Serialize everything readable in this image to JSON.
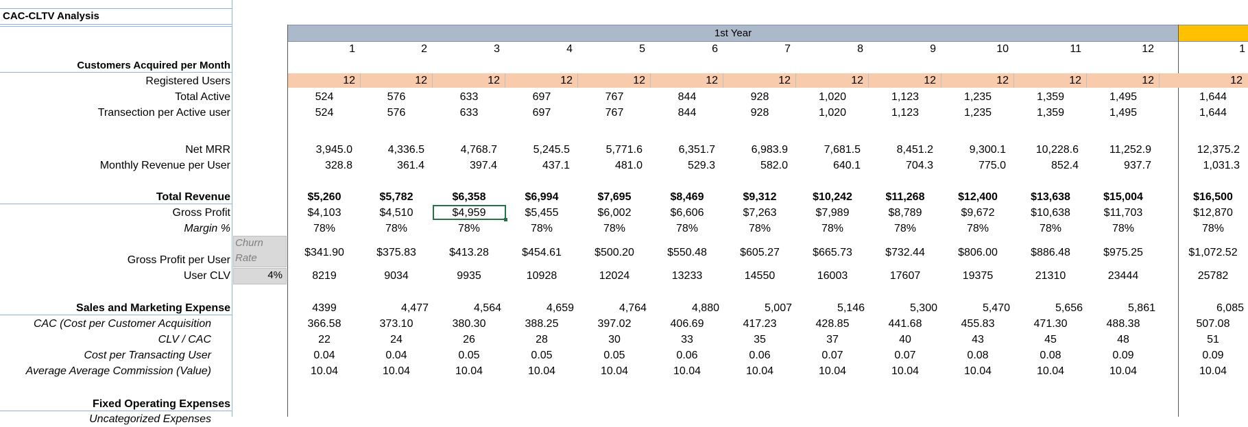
{
  "title": "CAC-CLTV Analysis",
  "year_header": "1st Year",
  "periods": [
    "1",
    "2",
    "3",
    "4",
    "5",
    "6",
    "7",
    "8",
    "9",
    "10",
    "11",
    "12",
    "1"
  ],
  "labels": {
    "customers_acquired": "Customers Acquired per Month",
    "registered_users": "Registered Users",
    "total_active": "Total Active",
    "transactions_per_user": "Transection per Active user",
    "net_mrr": "Net MRR",
    "monthly_revenue_per_user": "Monthly Revenue per User",
    "total_revenue": "Total Revenue",
    "gross_profit": "Gross Profit",
    "margin": "Margin %",
    "gross_profit_per_user": "Gross Profit per User",
    "user_clv": "User CLV",
    "sales_marketing": "Sales and Marketing Expense",
    "cac": "CAC (Cost per Customer Acquisition",
    "clv_cac": "CLV / CAC",
    "cost_per_transacting_user": "Cost per Transacting User",
    "avg_commission": "Average Average Commission (Value)",
    "fixed_opex": "Fixed Operating Expenses",
    "cut_off_label": "Uncategorized Expenses"
  },
  "churn": {
    "label_line1": "Churn",
    "label_line2": "Rate",
    "value": "4%"
  },
  "rows": {
    "registered_users": [
      "12",
      "12",
      "12",
      "12",
      "12",
      "12",
      "12",
      "12",
      "12",
      "12",
      "12",
      "12",
      "12"
    ],
    "total_active": [
      "524",
      "576",
      "633",
      "697",
      "767",
      "844",
      "928",
      "1,020",
      "1,123",
      "1,235",
      "1,359",
      "1,495",
      "1,644"
    ],
    "transactions_per_user": [
      "524",
      "576",
      "633",
      "697",
      "767",
      "844",
      "928",
      "1,020",
      "1,123",
      "1,235",
      "1,359",
      "1,495",
      "1,644"
    ],
    "net_mrr": [
      "3,945.0",
      "4,336.5",
      "4,768.7",
      "5,245.5",
      "5,771.6",
      "6,351.7",
      "6,983.9",
      "7,681.5",
      "8,451.2",
      "9,300.1",
      "10,228.6",
      "11,252.9",
      "12,375.2"
    ],
    "monthly_revenue_per_user": [
      "328.8",
      "361.4",
      "397.4",
      "437.1",
      "481.0",
      "529.3",
      "582.0",
      "640.1",
      "704.3",
      "775.0",
      "852.4",
      "937.7",
      "1,031.3"
    ],
    "total_revenue": [
      "$5,260",
      "$5,782",
      "$6,358",
      "$6,994",
      "$7,695",
      "$8,469",
      "$9,312",
      "$10,242",
      "$11,268",
      "$12,400",
      "$13,638",
      "$15,004",
      "$16,500"
    ],
    "gross_profit": [
      "$4,103",
      "$4,510",
      "$4,959",
      "$5,455",
      "$6,002",
      "$6,606",
      "$7,263",
      "$7,989",
      "$8,789",
      "$9,672",
      "$10,638",
      "$11,703",
      "$12,870"
    ],
    "margin": [
      "78%",
      "78%",
      "78%",
      "78%",
      "78%",
      "78%",
      "78%",
      "78%",
      "78%",
      "78%",
      "78%",
      "78%",
      "78%"
    ],
    "gross_profit_per_user": [
      "$341.90",
      "$375.83",
      "$413.28",
      "$454.61",
      "$500.20",
      "$550.48",
      "$605.27",
      "$665.73",
      "$732.44",
      "$806.00",
      "$886.48",
      "$975.25",
      "$1,072.52"
    ],
    "user_clv": [
      "8219",
      "9034",
      "9935",
      "10928",
      "12024",
      "13233",
      "14550",
      "16003",
      "17607",
      "19375",
      "21310",
      "23444",
      "25782"
    ],
    "sales_marketing": [
      "4399",
      "4,477",
      "4,564",
      "4,659",
      "4,764",
      "4,880",
      "5,007",
      "5,146",
      "5,300",
      "5,470",
      "5,656",
      "5,861",
      "6,085"
    ],
    "cac": [
      "366.58",
      "373.10",
      "380.30",
      "388.25",
      "397.02",
      "406.69",
      "417.23",
      "428.85",
      "441.68",
      "455.83",
      "471.30",
      "488.38",
      "507.08"
    ],
    "clv_cac": [
      "22",
      "24",
      "26",
      "28",
      "30",
      "33",
      "35",
      "37",
      "40",
      "43",
      "45",
      "48",
      "51"
    ],
    "cost_per_transacting_user": [
      "0.04",
      "0.04",
      "0.05",
      "0.05",
      "0.05",
      "0.06",
      "0.06",
      "0.07",
      "0.07",
      "0.08",
      "0.08",
      "0.09",
      "0.09"
    ],
    "avg_commission": [
      "10.04",
      "10.04",
      "10.04",
      "10.04",
      "10.04",
      "10.04",
      "10.04",
      "10.04",
      "10.04",
      "10.04",
      "10.04",
      "10.04",
      "10.04"
    ]
  },
  "colors": {
    "header_band": "#acb9ca",
    "registered_band": "#f8cbad",
    "next_year_band": "#ffc000",
    "churn_cell": "#d9d9d9",
    "border_blue": "#8db3e2",
    "selection": "#217346"
  }
}
